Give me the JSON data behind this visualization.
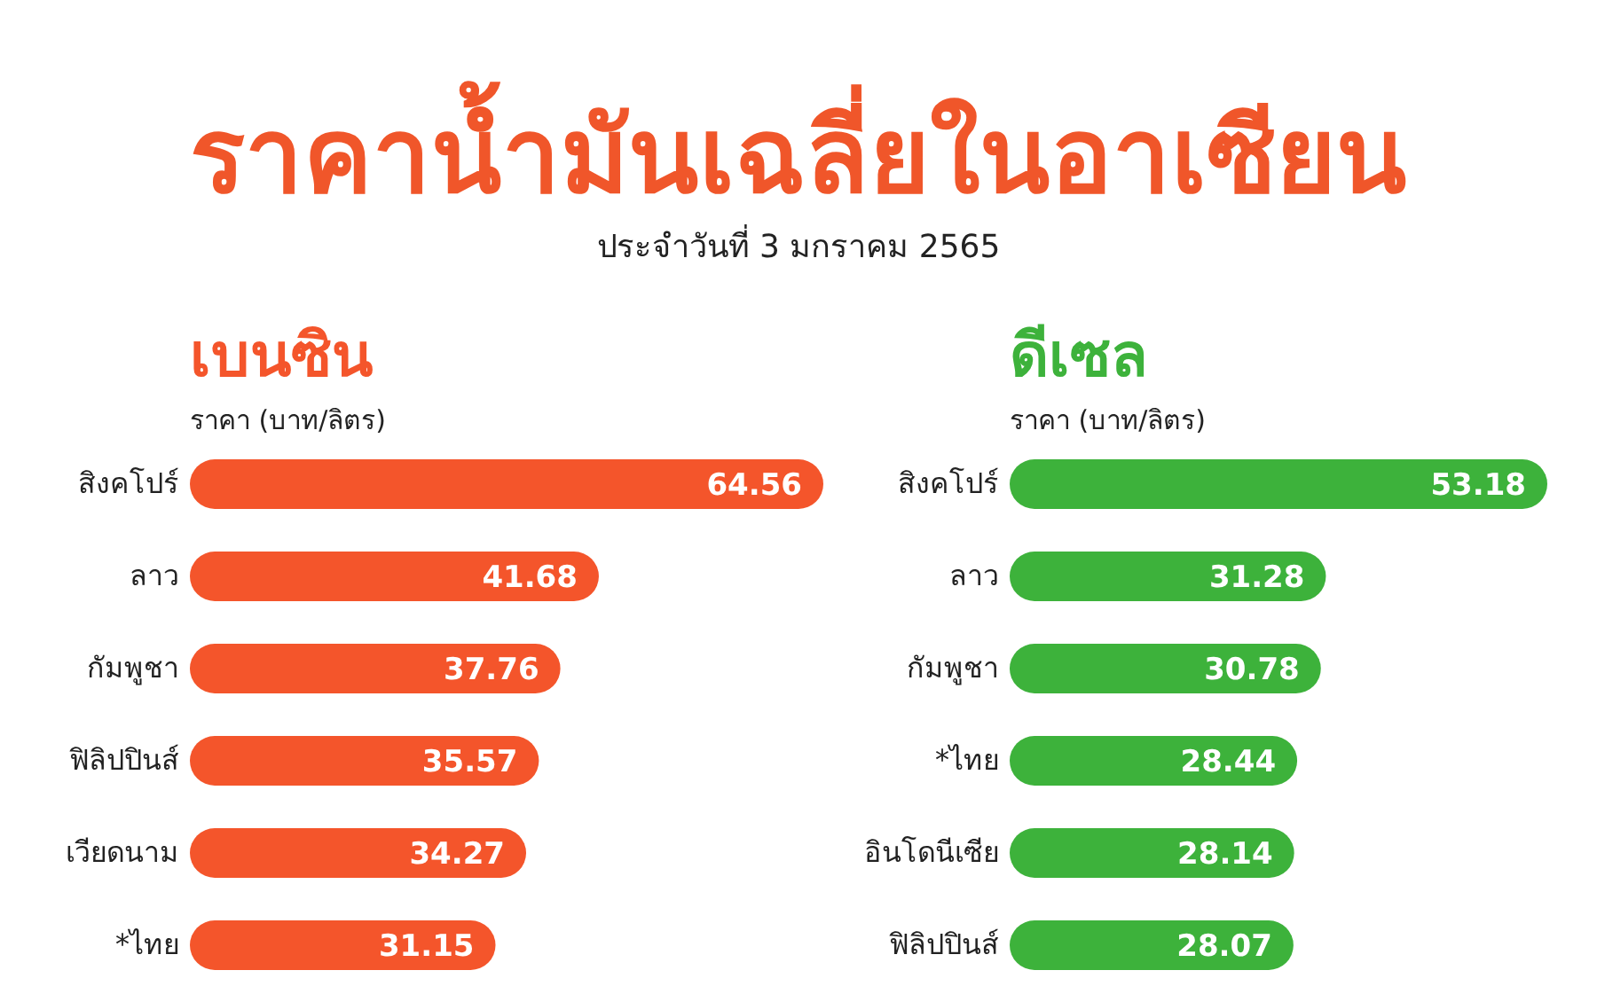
{
  "chart_data": [
    {
      "type": "other",
      "title": "ราคาน้ำมันเฉลี่ยในอาเซียน",
      "subtitle": "ประจำวันที่ 3 มกราคม 2565"
    },
    {
      "type": "bar",
      "orientation": "horizontal",
      "title": "เบนซิน",
      "xlabel": "ราคา (บาท/ลิตร)",
      "categories": [
        "สิงคโปร์",
        "ลาว",
        "กัมพูชา",
        "ฟิลิปปินส์",
        "เวียดนาม",
        "*ไทย"
      ],
      "values": [
        64.56,
        41.68,
        37.76,
        35.57,
        34.27,
        31.15
      ],
      "color": "#f4552b",
      "data_labels": true
    },
    {
      "type": "bar",
      "orientation": "horizontal",
      "title": "ดีเซล",
      "xlabel": "ราคา (บาท/ลิตร)",
      "categories": [
        "สิงคโปร์",
        "ลาว",
        "กัมพูชา",
        "*ไทย",
        "อินโดนีเซีย",
        "ฟิลิปปินส์"
      ],
      "values": [
        53.18,
        31.28,
        30.78,
        28.44,
        28.14,
        28.07
      ],
      "color": "#3db23b",
      "data_labels": true
    }
  ]
}
